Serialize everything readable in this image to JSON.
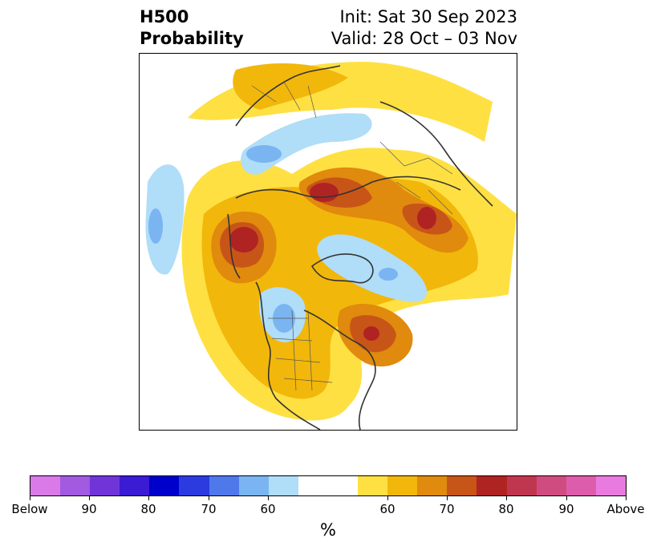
{
  "title": {
    "left_line1": "H500",
    "left_line2": "Probability",
    "right_line1": "Init: Sat 30 Sep 2023",
    "right_line2": "Valid: 28 Oct – 03 Nov"
  },
  "map": {
    "projection": "polar-stereographic",
    "ocean_color": "#ffffff",
    "coastline_color": "#333333",
    "border_color": "#555555"
  },
  "colorbar": {
    "units": "%",
    "segments": [
      "#d97ae8",
      "#a15ae0",
      "#7035d9",
      "#3b1bd4",
      "#0000cc",
      "#2b3be0",
      "#4f78ea",
      "#7ab5f2",
      "#b0ddf8",
      "#ffffff",
      "#ffffff",
      "#fee043",
      "#f2b70b",
      "#e08a0e",
      "#c85518",
      "#b02323",
      "#c1364f",
      "#d04c80",
      "#dd5cab",
      "#e97ae0"
    ],
    "tick_labels": [
      "Below",
      "90",
      "80",
      "70",
      "60",
      "60",
      "70",
      "80",
      "90",
      "Above"
    ]
  }
}
